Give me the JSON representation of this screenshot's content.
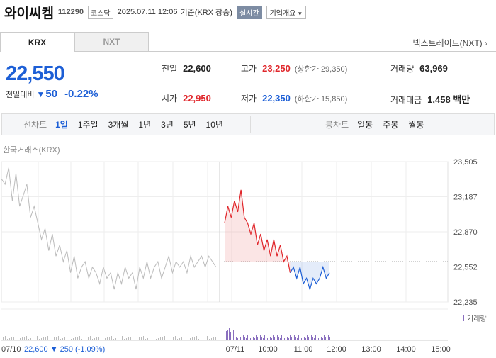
{
  "header": {
    "name": "와이씨켐",
    "code": "112290",
    "market": "코스닥",
    "datetime": "2025.07.11 12:06",
    "basis": "기준(KRX 장중)",
    "realtime": "실시간",
    "company_info": "기업개요"
  },
  "tabs": {
    "krx": "KRX",
    "nxt": "NXT"
  },
  "nextrade": "넥스트레이드(NXT)",
  "price": {
    "current": "22,550",
    "change_label": "전일대비",
    "change_value": "50",
    "change_pct": "-0.22%"
  },
  "stats": {
    "prev_label": "전일",
    "prev": "22,600",
    "high_label": "고가",
    "high": "23,250",
    "upper_limit": "(상한가 29,350)",
    "volume_label": "거래량",
    "volume": "63,969",
    "open_label": "시가",
    "open": "22,950",
    "low_label": "저가",
    "low": "22,350",
    "lower_limit": "(하한가 15,850)",
    "amount_label": "거래대금",
    "amount": "1,458 백만"
  },
  "chart_toolbar": {
    "line_label": "선차트",
    "periods": [
      "1일",
      "1주일",
      "3개월",
      "1년",
      "3년",
      "5년",
      "10년"
    ],
    "candle_label": "봉차트",
    "candles": [
      "일봉",
      "주봉",
      "월봉"
    ]
  },
  "chart_source": "한국거래소(KRX)",
  "colors": {
    "up": "#e0262b",
    "down": "#1d5fd6",
    "prev": "#bbbbbb"
  },
  "chart_data": {
    "type": "line",
    "y_ticks": [
      "23,505",
      "23,187",
      "22,870",
      "22,552",
      "22,235"
    ],
    "ylim": [
      22235,
      23505
    ],
    "x_ticks": [
      "07/11",
      "10:00",
      "11:00",
      "12:00",
      "13:00",
      "14:00",
      "15:00"
    ],
    "base_price": 22600,
    "volume_label": "거래량",
    "prev_day": {
      "date": "07/10",
      "close": "22,600",
      "change": "▼ 250 (-1.09%)",
      "values": [
        23350,
        23300,
        23450,
        23150,
        23400,
        23100,
        23200,
        23300,
        23000,
        23100,
        22950,
        22800,
        22900,
        22700,
        22850,
        22650,
        22750,
        22600,
        22700,
        22500,
        22650,
        22450,
        22550,
        22600,
        22450,
        22550,
        22500,
        22400,
        22550,
        22450,
        22500,
        22350,
        22500,
        22400,
        22550,
        22450,
        22500,
        22350,
        22550,
        22450,
        22600,
        22450,
        22550,
        22600,
        22450,
        22550,
        22650,
        22500,
        22600,
        22550,
        22600,
        22500,
        22650,
        22550,
        22600,
        22650,
        22550,
        22650,
        22600,
        22550
      ]
    },
    "today": {
      "values": [
        22950,
        23100,
        23000,
        23150,
        23050,
        23250,
        23000,
        22950,
        22850,
        22950,
        22750,
        22850,
        22700,
        22800,
        22650,
        22800,
        22650,
        22750,
        22600,
        22650,
        22500,
        22550,
        22450,
        22550,
        22400,
        22450,
        22350,
        22450,
        22400,
        22450,
        22550,
        22450,
        22500
      ]
    }
  }
}
